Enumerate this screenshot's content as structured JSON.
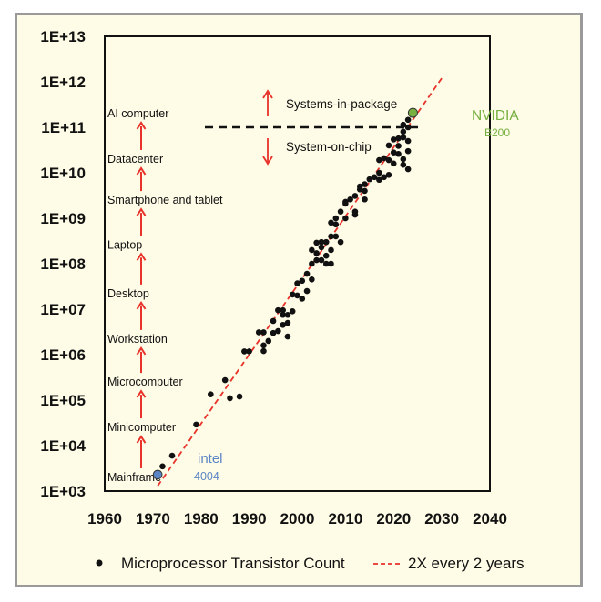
{
  "chart_data": {
    "type": "scatter",
    "title": "",
    "xlabel": "",
    "ylabel": "",
    "x_ticks": [
      "1960",
      "1970",
      "1980",
      "1990",
      "2000",
      "2010",
      "2020",
      "2030",
      "2040"
    ],
    "y_ticks": [
      "1E+03",
      "1E+04",
      "1E+05",
      "1E+06",
      "1E+07",
      "1E+08",
      "1E+09",
      "1E+10",
      "1E+11",
      "1E+12",
      "1E+13"
    ],
    "xlim": [
      1960,
      2040
    ],
    "ylim": [
      1000,
      10000000000000
    ],
    "y_scale": "log",
    "grid": false,
    "legend": {
      "position": "bottom",
      "entries": [
        "Microprocessor Transistor Count",
        "2X every 2 years"
      ]
    },
    "series": [
      {
        "name": "Microprocessor Transistor Count",
        "color": "#111111",
        "marker": "circle",
        "points": [
          [
            1972,
            3500
          ],
          [
            1974,
            6000
          ],
          [
            1979,
            29000
          ],
          [
            1982,
            134000
          ],
          [
            1985,
            275000
          ],
          [
            1986,
            110000
          ],
          [
            1988,
            120000
          ],
          [
            1989,
            1180000
          ],
          [
            1990,
            1180000
          ],
          [
            1992,
            3100000
          ],
          [
            1993,
            3100000
          ],
          [
            1993,
            1600000
          ],
          [
            1993,
            1200000
          ],
          [
            1994,
            2000000
          ],
          [
            1995,
            3000000
          ],
          [
            1995,
            5500000
          ],
          [
            1996,
            3300000
          ],
          [
            1996,
            9500000
          ],
          [
            1997,
            4500000
          ],
          [
            1997,
            7500000
          ],
          [
            1997,
            9500000
          ],
          [
            1998,
            5000000
          ],
          [
            1998,
            7500000
          ],
          [
            1998,
            2500000
          ],
          [
            1999,
            9000000
          ],
          [
            1999,
            21000000
          ],
          [
            2000,
            20000000
          ],
          [
            2000,
            37000000
          ],
          [
            2001,
            42000000
          ],
          [
            2001,
            17000000
          ],
          [
            2002,
            60000000
          ],
          [
            2002,
            25000000
          ],
          [
            2003,
            100000000
          ],
          [
            2003,
            200000000
          ],
          [
            2003,
            45000000
          ],
          [
            2004,
            170000000
          ],
          [
            2004,
            290000000
          ],
          [
            2004,
            120000000
          ],
          [
            2005,
            230000000
          ],
          [
            2005,
            120000000
          ],
          [
            2005,
            300000000
          ],
          [
            2006,
            300000000
          ],
          [
            2006,
            150000000
          ],
          [
            2006,
            100000000
          ],
          [
            2007,
            400000000
          ],
          [
            2007,
            800000000
          ],
          [
            2007,
            100000000
          ],
          [
            2007,
            200000000
          ],
          [
            2008,
            730000000
          ],
          [
            2008,
            400000000
          ],
          [
            2008,
            1000000000
          ],
          [
            2009,
            1400000000
          ],
          [
            2009,
            300000000
          ],
          [
            2010,
            2300000000
          ],
          [
            2010,
            1000000000
          ],
          [
            2010,
            2100000000
          ],
          [
            2011,
            2600000000
          ],
          [
            2012,
            1400000000
          ],
          [
            2012,
            1200000000
          ],
          [
            2012,
            3100000000
          ],
          [
            2013,
            5000000000
          ],
          [
            2013,
            4300000000
          ],
          [
            2014,
            5600000000
          ],
          [
            2014,
            2600000000
          ],
          [
            2014,
            4000000000
          ],
          [
            2015,
            7200000000
          ],
          [
            2016,
            8000000000
          ],
          [
            2017,
            7000000000
          ],
          [
            2017,
            10000000000
          ],
          [
            2017,
            19000000000
          ],
          [
            2018,
            21000000000
          ],
          [
            2018,
            8000000000
          ],
          [
            2019,
            9000000000
          ],
          [
            2019,
            19000000000
          ],
          [
            2019,
            40000000000
          ],
          [
            2020,
            54000000000
          ],
          [
            2020,
            28000000000
          ],
          [
            2020,
            16000000000
          ],
          [
            2021,
            57000000000
          ],
          [
            2021,
            26000000000
          ],
          [
            2021,
            39000000000
          ],
          [
            2022,
            80000000000
          ],
          [
            2022,
            114000000000
          ],
          [
            2022,
            20000000000
          ],
          [
            2022,
            60000000000
          ],
          [
            2023,
            100000000000
          ],
          [
            2023,
            146000000000
          ],
          [
            2023,
            30000000000
          ],
          [
            2023,
            12000000000
          ],
          [
            2023,
            50000000000
          ],
          [
            2022,
            15000000000
          ]
        ]
      },
      {
        "name": "2X every 2 years",
        "type": "line",
        "color": "#e8322a",
        "dash": "dashed",
        "points": [
          [
            1971,
            1300
          ],
          [
            2030,
            1200000000000
          ]
        ]
      }
    ],
    "highlighted_points": [
      {
        "x": 1971,
        "y": 2300,
        "color": "#5b86c5",
        "label": "intel",
        "sublabel": "4004"
      },
      {
        "x": 2024,
        "y": 208000000000,
        "color": "#76b041",
        "label": "NVIDIA",
        "sublabel": "B200"
      }
    ],
    "eras": [
      {
        "label": "Mainframe",
        "y": 2000
      },
      {
        "label": "Minicomputer",
        "y": 25000
      },
      {
        "label": "Microcomputer",
        "y": 250000
      },
      {
        "label": "Workstation",
        "y": 2200000
      },
      {
        "label": "Desktop",
        "y": 22000000
      },
      {
        "label": "Laptop",
        "y": 260000000
      },
      {
        "label": "Smartphone and tablet",
        "y": 2500000000
      },
      {
        "label": "Datacenter",
        "y": 20000000000
      },
      {
        "label": "AI computer",
        "y": 200000000000
      }
    ],
    "annotations": {
      "threshold_y": 100000000000,
      "above": "Systems-in-package",
      "below": "System-on-chip"
    }
  }
}
